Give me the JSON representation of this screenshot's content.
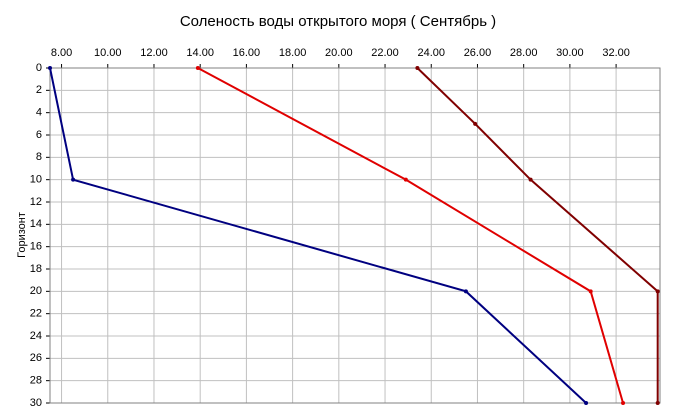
{
  "chart_data": {
    "type": "line",
    "title": "Соленость воды открытого моря    ( Сентябрь )",
    "y_label": "Горизонт",
    "xlim": [
      7.5,
      33.9
    ],
    "ylim": [
      0,
      30
    ],
    "y_inverted": true,
    "grid": true,
    "xticks": [
      {
        "value": 8,
        "label": "8.00"
      },
      {
        "value": 10,
        "label": "10.00"
      },
      {
        "value": 12,
        "label": "12.00"
      },
      {
        "value": 14,
        "label": "14.00"
      },
      {
        "value": 16,
        "label": "16.00"
      },
      {
        "value": 18,
        "label": "18.00"
      },
      {
        "value": 20,
        "label": "20.00"
      },
      {
        "value": 22,
        "label": "22.00"
      },
      {
        "value": 24,
        "label": "24.00"
      },
      {
        "value": 26,
        "label": "26.00"
      },
      {
        "value": 28,
        "label": "28.00"
      },
      {
        "value": 30,
        "label": "30.00"
      },
      {
        "value": 32,
        "label": "32.00"
      }
    ],
    "yticks": [
      0,
      2,
      4,
      6,
      8,
      10,
      12,
      14,
      16,
      18,
      20,
      22,
      24,
      26,
      28,
      30
    ],
    "series": [
      {
        "color": "#000080",
        "x": [
          7.5,
          8.5,
          25.5,
          30.7
        ],
        "y": [
          0,
          10,
          20,
          30
        ]
      },
      {
        "color": "#e00000",
        "x": [
          13.9,
          22.9,
          30.9,
          32.3
        ],
        "y": [
          0,
          10,
          20,
          30
        ]
      },
      {
        "color": "#800000",
        "x": [
          23.4,
          25.9,
          28.3,
          33.8,
          33.8
        ],
        "y": [
          0,
          5,
          10,
          20,
          30
        ]
      }
    ]
  }
}
